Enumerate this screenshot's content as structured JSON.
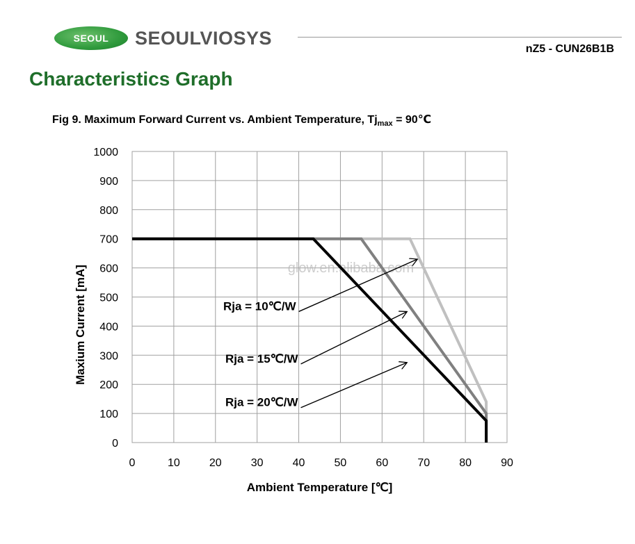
{
  "header": {
    "logo_badge": "SEOUL",
    "logo_text_1": "SEOUL",
    "logo_text_2": "VIOSYS",
    "part_number": "nZ5 - CUN26B1B",
    "brand_color": "#2f9a3c"
  },
  "section_title": "Characteristics Graph",
  "figure": {
    "caption_main": "Fig 9. Maximum Forward Current vs. Ambient Temperature, Tj",
    "caption_sub": "max",
    "caption_tail": " = 90℃"
  },
  "watermark": "glow.en.alibaba.com",
  "chart_data": {
    "type": "line",
    "xlabel": "Ambient Temperature [℃]",
    "ylabel": "Maxium Current [mA]",
    "xlim": [
      0,
      90
    ],
    "ylim": [
      0,
      1000
    ],
    "xticks": [
      0,
      10,
      20,
      30,
      40,
      50,
      60,
      70,
      80,
      90
    ],
    "yticks": [
      0,
      100,
      200,
      300,
      400,
      500,
      600,
      700,
      800,
      900,
      1000
    ],
    "grid": true,
    "series": [
      {
        "label": "Rja = 20℃/W",
        "color": "#000000",
        "points": [
          [
            0,
            700
          ],
          [
            43.5,
            700
          ],
          [
            85,
            75
          ],
          [
            85,
            0
          ]
        ]
      },
      {
        "label": "Rja = 15℃/W",
        "color": "#808080",
        "points": [
          [
            0,
            700
          ],
          [
            55,
            700
          ],
          [
            85,
            100
          ],
          [
            85,
            0
          ]
        ]
      },
      {
        "label": "Rja = 10℃/W",
        "color": "#c0c0c0",
        "points": [
          [
            0,
            700
          ],
          [
            66.7,
            700
          ],
          [
            85,
            140
          ],
          [
            85,
            0
          ]
        ]
      }
    ],
    "annotations": [
      {
        "text": "Rja = 10℃/W",
        "arrow_from": [
          40,
          450
        ],
        "arrow_to": [
          68.5,
          630
        ]
      },
      {
        "text": "Rja = 15℃/W",
        "arrow_from": [
          40.5,
          270
        ],
        "arrow_to": [
          66,
          450
        ]
      },
      {
        "text": "Rja = 20℃/W",
        "arrow_from": [
          40.5,
          120
        ],
        "arrow_to": [
          66,
          275
        ]
      }
    ]
  }
}
